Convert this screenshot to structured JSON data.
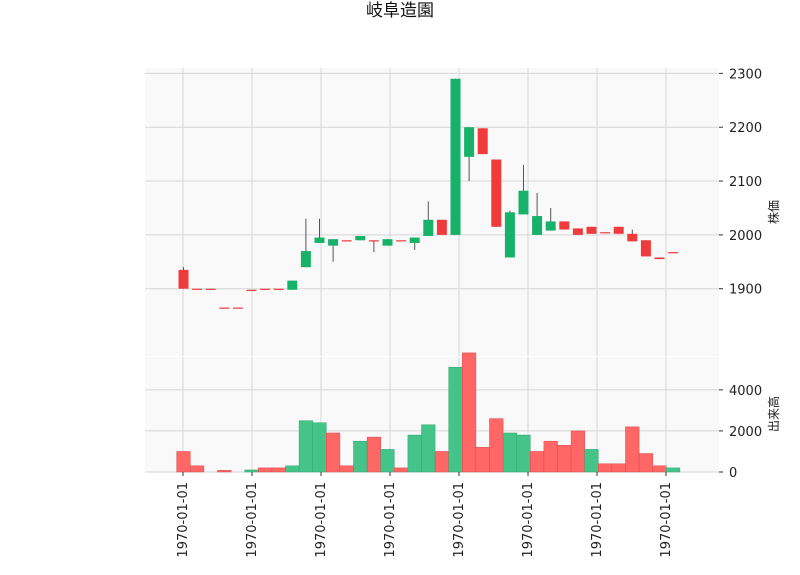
{
  "chart_data": {
    "type": "candlestick",
    "title": "岐阜造園",
    "x_tick_labels": [
      "1970-01-01",
      "1970-01-01",
      "1970-01-01",
      "1970-01-01",
      "1970-01-01",
      "1970-01-01",
      "1970-01-01",
      "1970-01-01"
    ],
    "price": {
      "ylabel": "株価",
      "ylim": [
        1775,
        2310
      ],
      "yticks": [
        1900,
        2000,
        2100,
        2200,
        2300
      ],
      "grid": true
    },
    "volume": {
      "ylabel": "出来高",
      "ylim": [
        0,
        5600
      ],
      "yticks": [
        0,
        2000,
        4000
      ],
      "grid": true
    },
    "colors": {
      "up": "#ef3b3b",
      "down": "#17b26a",
      "up_volume": "#ff6666",
      "down_volume": "#44c489",
      "background": "#f9f9f9",
      "grid": "#d6d6d6"
    },
    "candles": [
      {
        "open": 1900,
        "close": 1935,
        "high": 1940,
        "low": 1900,
        "volume": 1000
      },
      {
        "open": 1900,
        "close": 1900,
        "high": 1900,
        "low": 1900,
        "volume": 300
      },
      {
        "open": 1900,
        "close": 1900,
        "high": 1900,
        "low": 1900,
        "volume": 0
      },
      {
        "open": 1865,
        "close": 1865,
        "high": 1865,
        "low": 1865,
        "volume": 80
      },
      {
        "open": 1865,
        "close": 1865,
        "high": 1865,
        "low": 1865,
        "volume": 0
      },
      {
        "open": 1898,
        "close": 1898,
        "high": 1898,
        "low": 1898,
        "volume": 100
      },
      {
        "open": 1900,
        "close": 1900,
        "high": 1900,
        "low": 1900,
        "volume": 200
      },
      {
        "open": 1900,
        "close": 1900,
        "high": 1900,
        "low": 1900,
        "volume": 200
      },
      {
        "open": 1915,
        "close": 1898,
        "high": 1915,
        "low": 1898,
        "volume": 300
      },
      {
        "open": 1970,
        "close": 1940,
        "high": 2030,
        "low": 1940,
        "volume": 2500
      },
      {
        "open": 1995,
        "close": 1985,
        "high": 2030,
        "low": 1985,
        "volume": 2400
      },
      {
        "open": 1992,
        "close": 1980,
        "high": 1992,
        "low": 1950,
        "volume": 1900
      },
      {
        "open": 1990,
        "close": 1990,
        "high": 1990,
        "low": 1990,
        "volume": 300
      },
      {
        "open": 1998,
        "close": 1990,
        "high": 1998,
        "low": 1990,
        "volume": 1500
      },
      {
        "open": 1990,
        "close": 1990,
        "high": 1990,
        "low": 1968,
        "volume": 1700
      },
      {
        "open": 1992,
        "close": 1980,
        "high": 1992,
        "low": 1980,
        "volume": 1100
      },
      {
        "open": 1990,
        "close": 1990,
        "high": 1990,
        "low": 1990,
        "volume": 200
      },
      {
        "open": 1995,
        "close": 1985,
        "high": 1995,
        "low": 1972,
        "volume": 1800
      },
      {
        "open": 2028,
        "close": 1998,
        "high": 2062,
        "low": 1998,
        "volume": 2300
      },
      {
        "open": 2000,
        "close": 2028,
        "high": 2028,
        "low": 2000,
        "volume": 1000
      },
      {
        "open": 2290,
        "close": 2000,
        "high": 2290,
        "low": 2000,
        "volume": 5100
      },
      {
        "open": 2200,
        "close": 2145,
        "high": 2200,
        "low": 2100,
        "volume": 5800
      },
      {
        "open": 2150,
        "close": 2198,
        "high": 2198,
        "low": 2150,
        "volume": 1200
      },
      {
        "open": 2015,
        "close": 2140,
        "high": 2140,
        "low": 2015,
        "volume": 2600
      },
      {
        "open": 2042,
        "close": 1958,
        "high": 2045,
        "low": 1958,
        "volume": 1900
      },
      {
        "open": 2082,
        "close": 2038,
        "high": 2130,
        "low": 2038,
        "volume": 1800
      },
      {
        "open": 2035,
        "close": 2000,
        "high": 2078,
        "low": 2000,
        "volume": 1000
      },
      {
        "open": 2025,
        "close": 2008,
        "high": 2050,
        "low": 2008,
        "volume": 1500
      },
      {
        "open": 2010,
        "close": 2025,
        "high": 2025,
        "low": 2010,
        "volume": 1300
      },
      {
        "open": 2000,
        "close": 2012,
        "high": 2012,
        "low": 2000,
        "volume": 2000
      },
      {
        "open": 2002,
        "close": 2015,
        "high": 2015,
        "low": 2002,
        "volume": 1100
      },
      {
        "open": 2005,
        "close": 2005,
        "high": 2005,
        "low": 2005,
        "volume": 400
      },
      {
        "open": 2002,
        "close": 2015,
        "high": 2015,
        "low": 2002,
        "volume": 400
      },
      {
        "open": 1988,
        "close": 2002,
        "high": 2010,
        "low": 1988,
        "volume": 2200
      },
      {
        "open": 1960,
        "close": 1990,
        "high": 1990,
        "low": 1960,
        "volume": 900
      },
      {
        "open": 1955,
        "close": 1958,
        "high": 1958,
        "low": 1955,
        "volume": 300
      },
      {
        "open": 1968,
        "close": 1968,
        "high": 1968,
        "low": 1968,
        "volume": 200
      }
    ],
    "volume_direction": [
      "up",
      "up",
      "up",
      "up",
      "down",
      "down",
      "up",
      "up",
      "down",
      "down",
      "down",
      "up",
      "up",
      "down",
      "up",
      "down",
      "up",
      "down",
      "down",
      "up",
      "down",
      "up",
      "up",
      "up",
      "down",
      "down",
      "up",
      "up",
      "up",
      "up",
      "down",
      "up",
      "up",
      "up",
      "up",
      "up",
      "down"
    ]
  }
}
